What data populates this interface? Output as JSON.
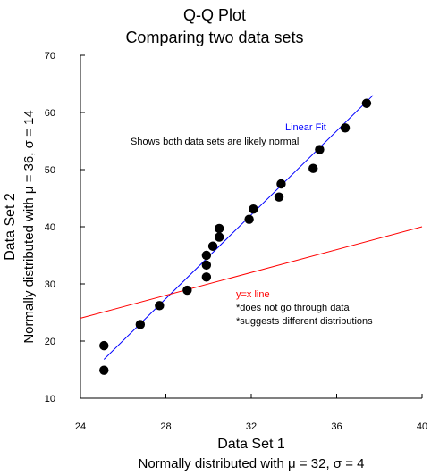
{
  "chart_data": {
    "type": "scatter",
    "title": "Q-Q Plot",
    "subtitle": "Comparing two data sets",
    "xlabel": "Data Set 1",
    "xlabel_sub": "Normally distributed with μ = 32, σ = 4",
    "ylabel": "Data Set 2",
    "ylabel_sub": "Normally distributed with μ = 36, σ = 14",
    "xlim": [
      24,
      40
    ],
    "ylim": [
      10,
      70
    ],
    "x_ticks": [
      "24",
      "28",
      "32",
      "36",
      "40"
    ],
    "y_ticks": [
      "10",
      "20",
      "30",
      "40",
      "50",
      "60",
      "70"
    ],
    "grid": false,
    "series": [
      {
        "points": [
          [
            25.1,
            14.9
          ],
          [
            25.1,
            19.2
          ],
          [
            26.8,
            22.9
          ],
          [
            27.7,
            26.2
          ],
          [
            29.0,
            28.9
          ],
          [
            29.9,
            31.2
          ],
          [
            29.9,
            33.3
          ],
          [
            29.9,
            35.0
          ],
          [
            30.2,
            36.6
          ],
          [
            30.5,
            38.2
          ],
          [
            30.5,
            39.7
          ],
          [
            31.9,
            41.3
          ],
          [
            32.1,
            43.1
          ],
          [
            33.3,
            45.2
          ],
          [
            33.4,
            47.5
          ],
          [
            34.9,
            50.2
          ],
          [
            35.2,
            53.5
          ],
          [
            36.4,
            57.3
          ],
          [
            37.4,
            61.6
          ]
        ],
        "color": "#000000"
      }
    ],
    "lines": [
      {
        "name": "Linear Fit",
        "from": [
          25.1,
          16.8
        ],
        "to": [
          37.7,
          63.0
        ],
        "color": "#0000ff"
      },
      {
        "name": "y=x line",
        "from": [
          24.0,
          24.0
        ],
        "to": [
          40.0,
          40.0
        ],
        "color": "#ff0000"
      }
    ],
    "annotations": {
      "fit_label": "Linear Fit",
      "fit_note": "Shows both data sets are likely normal",
      "yx_label": "y=x line",
      "yx_note_1": "*does not go through data",
      "yx_note_2": "*suggests different distributions"
    }
  }
}
